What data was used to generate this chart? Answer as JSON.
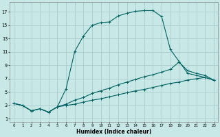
{
  "xlabel": "Humidex (Indice chaleur)",
  "bg_color": "#c8e8e8",
  "line_color": "#006060",
  "grid_color": "#a8cccc",
  "xlim": [
    -0.5,
    23.5
  ],
  "ylim": [
    0.5,
    18.5
  ],
  "xticks": [
    0,
    1,
    2,
    3,
    4,
    5,
    6,
    7,
    8,
    9,
    10,
    11,
    12,
    13,
    14,
    15,
    16,
    17,
    18,
    19,
    20,
    21,
    22,
    23
  ],
  "yticks": [
    1,
    3,
    5,
    7,
    9,
    11,
    13,
    15,
    17
  ],
  "line1_x": [
    0,
    1,
    2,
    3,
    4,
    5,
    6,
    7,
    8,
    9,
    10,
    11,
    12,
    13,
    14,
    15,
    16,
    17,
    18,
    19,
    20,
    21,
    22,
    23
  ],
  "line1_y": [
    3.3,
    3.0,
    2.2,
    2.5,
    2.0,
    2.8,
    5.5,
    11.1,
    13.4,
    15.0,
    15.4,
    15.5,
    16.4,
    16.8,
    17.1,
    17.2,
    17.2,
    16.3,
    11.4,
    9.6,
    7.8,
    7.5,
    7.2,
    6.8
  ],
  "line2_x": [
    0,
    1,
    2,
    3,
    4,
    5,
    6,
    7,
    8,
    9,
    10,
    11,
    12,
    13,
    14,
    15,
    16,
    17,
    18,
    19,
    20,
    21,
    22,
    23
  ],
  "line2_y": [
    3.3,
    3.0,
    2.2,
    2.5,
    2.0,
    2.8,
    3.2,
    3.8,
    4.2,
    4.8,
    5.2,
    5.6,
    6.1,
    6.5,
    6.9,
    7.3,
    7.6,
    8.0,
    8.4,
    9.5,
    8.2,
    7.8,
    7.5,
    6.8
  ],
  "line3_x": [
    0,
    1,
    2,
    3,
    4,
    5,
    6,
    7,
    8,
    9,
    10,
    11,
    12,
    13,
    14,
    15,
    16,
    17,
    18,
    19,
    20,
    21,
    22,
    23
  ],
  "line3_y": [
    3.3,
    3.0,
    2.2,
    2.5,
    2.0,
    2.8,
    3.0,
    3.2,
    3.5,
    3.8,
    4.0,
    4.3,
    4.6,
    4.9,
    5.2,
    5.4,
    5.7,
    6.0,
    6.3,
    6.5,
    6.8,
    7.0,
    7.2,
    6.8
  ]
}
